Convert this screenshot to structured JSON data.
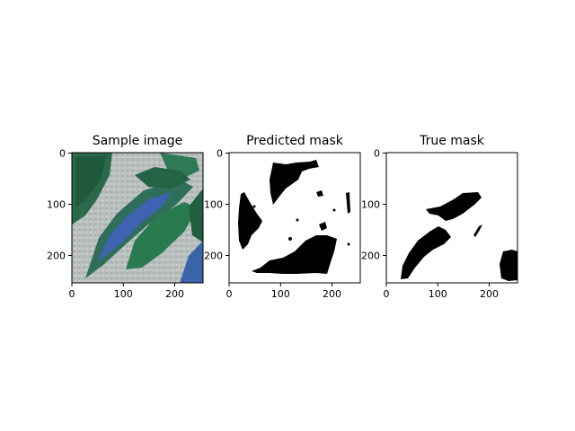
{
  "panels": [
    {
      "title": "Sample image",
      "xticks": [
        "0",
        "100",
        "200"
      ],
      "yticks": [
        "0",
        "100",
        "200"
      ]
    },
    {
      "title": "Predicted mask",
      "xticks": [
        "0",
        "100",
        "200"
      ],
      "yticks": [
        "0",
        "100",
        "200"
      ]
    },
    {
      "title": "True mask",
      "xticks": [
        "0",
        "100",
        "200"
      ],
      "yticks": [
        "0",
        "100",
        "200"
      ]
    }
  ],
  "axis_range": {
    "x": [
      0,
      255
    ],
    "y": [
      0,
      255
    ]
  },
  "tick_values": [
    0,
    100,
    200
  ],
  "colors": {
    "leaf_dark": "#1f5a3f",
    "leaf_green": "#2f7a55",
    "leaf_blue": "#3f63b0",
    "background_gray": "#b9bdbd",
    "mask_foreground": "#000000",
    "mask_background": "#ffffff"
  }
}
